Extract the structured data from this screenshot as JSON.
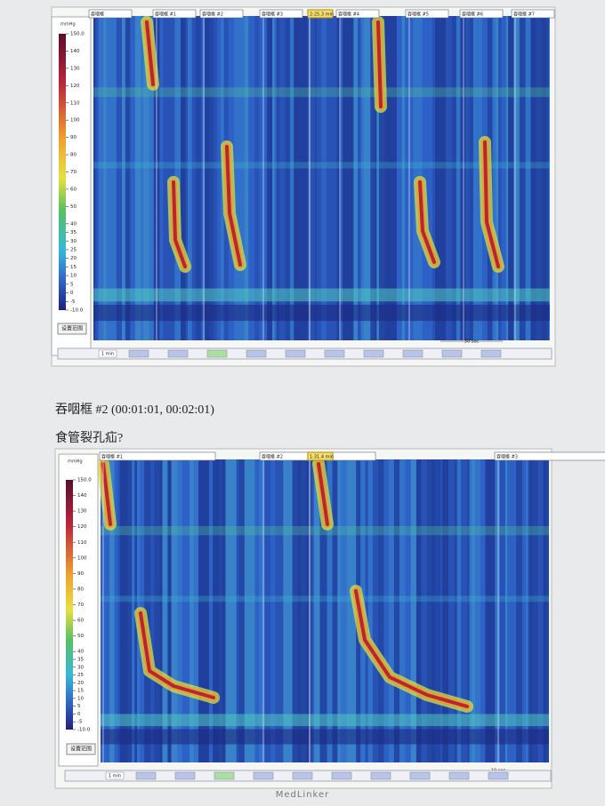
{
  "panels": [
    {
      "unit": "mmHg",
      "lim": [
        -10,
        150
      ],
      "ticks": [
        {
          "value": 150,
          "label": "150.0"
        },
        140,
        130,
        120,
        110,
        100,
        90,
        80,
        70,
        60,
        50,
        40,
        35,
        30,
        25,
        20,
        15,
        10,
        5,
        0,
        -5,
        {
          "value": -10,
          "label": "-10.0"
        }
      ],
      "button": "设置范围",
      "tags": [
        "吞咽框",
        "吞咽框 #1",
        "吞咽框 #2",
        "吞咽框 #3",
        "吞咽框 #4",
        "吞咽框 #5",
        "吞咽框 #6",
        "吞咽框 #7"
      ],
      "time_marker": "2:25.3 min",
      "scale_label": "30 sec",
      "zoom": "1 min"
    },
    {
      "unit": "mmHg",
      "lim": [
        -10,
        150
      ],
      "ticks": [
        {
          "value": 150,
          "label": "150.0"
        },
        140,
        130,
        120,
        110,
        100,
        90,
        80,
        70,
        60,
        50,
        40,
        35,
        30,
        25,
        20,
        15,
        10,
        5,
        0,
        -5,
        {
          "value": -10,
          "label": "-10.0"
        }
      ],
      "button": "设置范围",
      "tags": [
        "吞咽框 #1",
        "吞咽框 #2",
        "吞咽框 #3"
      ],
      "time_marker": "1:31.4 min",
      "scale_label": "10 sec",
      "zoom": "1 min"
    }
  ],
  "caption": "吞咽框 #2 (00:01:01, 00:02:01)",
  "diagnosis": "食管裂孔疝?",
  "watermark": "MedLinker"
}
